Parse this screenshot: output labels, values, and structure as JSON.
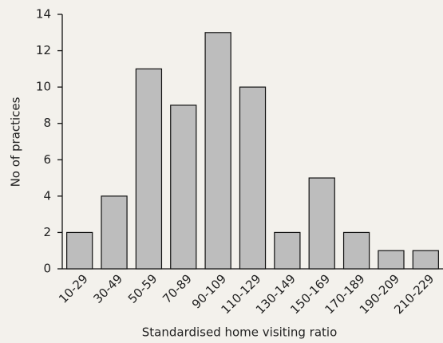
{
  "chart_data": {
    "type": "bar",
    "xlabel": "Standardised home visiting ratio",
    "ylabel": "No of practices",
    "categories": [
      "10-29",
      "30-49",
      "50-59",
      "70-89",
      "90-109",
      "110-129",
      "130-149",
      "150-169",
      "170-189",
      "190-209",
      "210-229"
    ],
    "values": [
      2,
      4,
      11,
      9,
      13,
      10,
      2,
      5,
      2,
      1,
      1
    ],
    "color": "#bdbdbd",
    "ylim": [
      0,
      14
    ],
    "yticks": [
      0,
      2,
      4,
      6,
      8,
      10,
      12,
      14
    ],
    "grid": false
  }
}
